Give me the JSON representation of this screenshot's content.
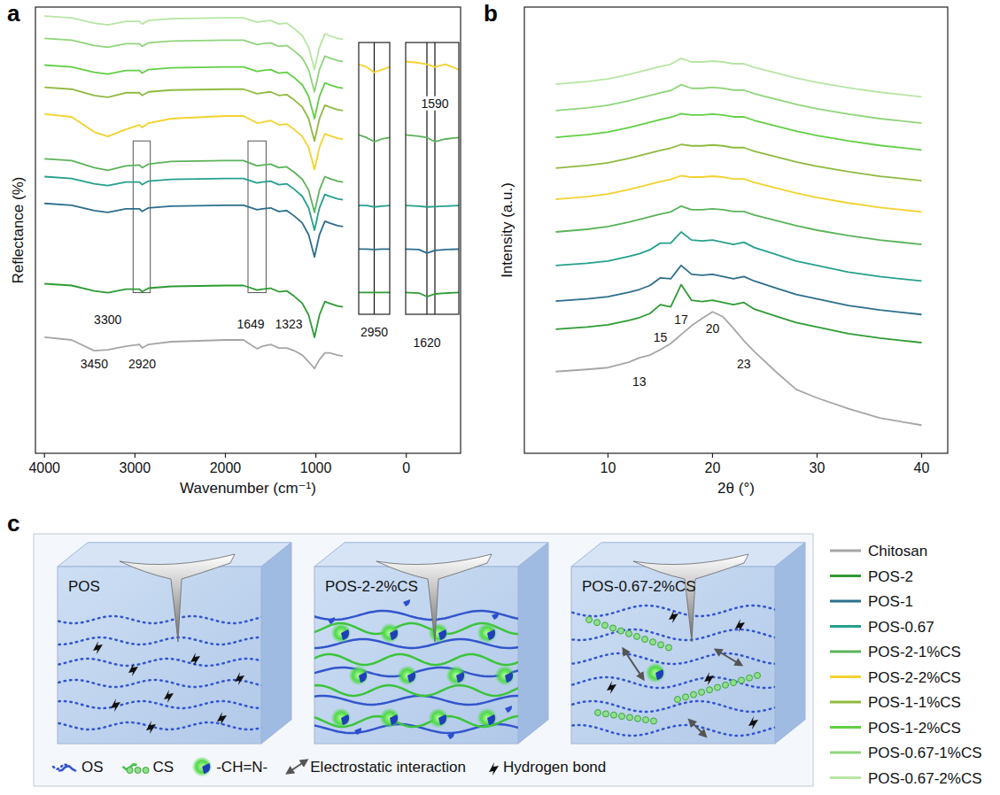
{
  "panel_labels": [
    "a",
    "b",
    "c"
  ],
  "chart_data": [
    {
      "type": "line",
      "xlabel": "Wavenumber (cm⁻¹)",
      "ylabel": "Reflectance (%)",
      "xlim": [
        4100,
        -600
      ],
      "ylim": [
        0,
        100
      ],
      "xticks": [
        4000,
        3000,
        2000,
        1000,
        0
      ],
      "tick_labels": "x",
      "legend": "right",
      "x": [
        4000,
        3700,
        3450,
        3300,
        3100,
        2950,
        2920,
        2850,
        2600,
        2000,
        1800,
        1649,
        1590,
        1500,
        1410,
        1323,
        1240,
        1150,
        1080,
        1015,
        960,
        900,
        850,
        760,
        700
      ],
      "series": [
        {
          "name": "Chitosan",
          "color": "#a6a6a6",
          "values": [
            26,
            25.4,
            23,
            23.2,
            24,
            24.4,
            23.6,
            24.4,
            25,
            25.4,
            25.4,
            23.4,
            24,
            24.4,
            23.6,
            23.6,
            23,
            22,
            20.5,
            19,
            21,
            22.5,
            22.5,
            22,
            21.8
          ]
        },
        {
          "name": "POS-2",
          "color": "#2e9b34",
          "values": [
            38,
            37.6,
            36.4,
            36,
            36.8,
            36.8,
            36.2,
            37,
            37.4,
            37.6,
            37.6,
            36.6,
            36.8,
            37,
            36.2,
            36.4,
            35.2,
            33.6,
            31,
            26,
            31,
            34,
            33.6,
            33,
            32.8
          ]
        },
        {
          "name": "POS-1",
          "color": "#2c6e8c",
          "values": [
            56,
            55.6,
            54.4,
            54,
            54.8,
            54.8,
            54.2,
            55,
            55.4,
            55.6,
            55.6,
            54.6,
            54.8,
            55,
            54.2,
            54.4,
            53.2,
            51.6,
            49,
            44,
            49,
            52,
            51.6,
            51,
            50.8
          ]
        },
        {
          "name": "POS-0.67",
          "color": "#26a08e",
          "values": [
            62,
            61.6,
            60.4,
            60,
            60.8,
            60.8,
            60.2,
            61,
            61.4,
            61.6,
            61.6,
            60.6,
            60.8,
            61,
            60.2,
            60.4,
            59.2,
            57.6,
            55,
            50,
            55,
            58,
            57.6,
            57,
            56.8
          ]
        },
        {
          "name": "POS-2-1%CS",
          "color": "#5bb35a",
          "values": [
            66,
            65.6,
            64,
            63.4,
            64.4,
            64.6,
            64,
            64.8,
            65.4,
            65.6,
            65.6,
            64.4,
            64.6,
            64.8,
            64,
            64.2,
            63,
            61.4,
            59,
            54,
            59,
            62,
            61.6,
            61,
            60.8
          ]
        },
        {
          "name": "POS-2-2%CS",
          "color": "#f4d22e",
          "values": [
            76,
            75.4,
            72,
            71,
            72.6,
            73.6,
            73,
            74,
            75,
            75.6,
            75.6,
            74,
            74.2,
            74.6,
            73.6,
            73.8,
            72.6,
            71,
            68.6,
            63.6,
            68.6,
            71.6,
            71.2,
            70.6,
            70.4
          ]
        },
        {
          "name": "POS-1-1%CS",
          "color": "#8fba3f",
          "values": [
            82,
            81.6,
            80.2,
            79.8,
            80.8,
            80.8,
            80.2,
            81,
            81.4,
            81.6,
            81.6,
            80.6,
            80.8,
            81,
            80.2,
            80.4,
            79.2,
            77.6,
            75,
            70,
            75,
            78,
            77.6,
            77,
            76.8
          ]
        },
        {
          "name": "POS-1-2%CS",
          "color": "#62cf45",
          "values": [
            87,
            86.6,
            85.4,
            85,
            85.8,
            85.8,
            85.2,
            86,
            86.4,
            86.6,
            86.6,
            85.6,
            85.8,
            86,
            85.2,
            85.4,
            84.2,
            82.6,
            80,
            75,
            80,
            83,
            82.6,
            82,
            81.8
          ]
        },
        {
          "name": "POS-0.67-1%CS",
          "color": "#8fd57b",
          "values": [
            93,
            92.6,
            91.4,
            91,
            91.8,
            91.8,
            91.2,
            92,
            92.4,
            92.6,
            92.6,
            91.6,
            91.8,
            92,
            91.2,
            91.4,
            90.2,
            88.6,
            86,
            81,
            86,
            89,
            88.6,
            88,
            87.8
          ]
        },
        {
          "name": "POS-0.67-2%CS",
          "color": "#b6e6a3",
          "values": [
            98,
            97.6,
            96.4,
            96,
            96.8,
            96.8,
            96.2,
            97,
            97.4,
            97.6,
            97.6,
            96.6,
            96.8,
            97,
            96.2,
            96.4,
            95.2,
            93.6,
            91,
            86,
            91,
            94,
            93.6,
            93,
            92.8
          ]
        }
      ],
      "regions": [
        {
          "x": [
            3020,
            2830
          ],
          "y": [
            36,
            70
          ]
        },
        {
          "x": [
            1750,
            1550
          ],
          "y": [
            36,
            70
          ]
        }
      ],
      "annotations": [
        {
          "text": "3450",
          "x": 3450,
          "y": 19
        },
        {
          "text": "3300",
          "x": 3300,
          "y": 29
        },
        {
          "text": "2920",
          "x": 2920,
          "y": 19
        },
        {
          "text": "1649",
          "x": 1720,
          "y": 28
        },
        {
          "text": "1323",
          "x": 1300,
          "y": 28
        }
      ]
    },
    {
      "type": "line",
      "xlabel": "2θ (°)",
      "ylabel": "Intensity (a.u.)",
      "xlim": [
        2,
        42.5
      ],
      "ylim": [
        0,
        100
      ],
      "xticks": [
        10,
        20,
        30,
        40
      ],
      "tick_labels": "x",
      "x": [
        5,
        8,
        10,
        12,
        13,
        14,
        15,
        16,
        17,
        18,
        19,
        20,
        21,
        22,
        23,
        24,
        26,
        28,
        30,
        33,
        36,
        40
      ],
      "series": [
        {
          "color": "#a6a6a6",
          "values": [
            18.3,
            18.8,
            19.2,
            20.4,
            21.4,
            22,
            23.2,
            24.6,
            26.6,
            28.6,
            30.2,
            31.7,
            30.6,
            28,
            25.2,
            22.8,
            18.4,
            14.3,
            12.4,
            10,
            7.9,
            6.3
          ]
        },
        {
          "color": "#2e9b34",
          "values": [
            27.8,
            28.3,
            28.8,
            29.8,
            30.4,
            31.3,
            33.3,
            32.8,
            37.8,
            34.3,
            34,
            34.3,
            33.8,
            33.3,
            33.8,
            32.3,
            30.8,
            29.3,
            28.3,
            26.8,
            25.8,
            24.8
          ]
        },
        {
          "color": "#2c6e8c",
          "values": [
            34.1,
            34.6,
            35.1,
            36.1,
            36.7,
            37.6,
            39.3,
            39.1,
            42.1,
            40.1,
            39.9,
            40.1,
            39.6,
            39.1,
            39.6,
            38.6,
            37.1,
            35.6,
            34.6,
            33.1,
            32.1,
            31.1
          ]
        },
        {
          "color": "#26a08e",
          "values": [
            42.1,
            42.6,
            43.1,
            44.1,
            44.7,
            45.6,
            47.1,
            47.1,
            49.6,
            47.8,
            47.6,
            47.8,
            47.3,
            46.8,
            47.3,
            46.1,
            44.6,
            43.1,
            42.1,
            40.6,
            39.6,
            38.6
          ]
        },
        {
          "color": "#5bb35a",
          "values": [
            49.6,
            50.2,
            50.8,
            51.8,
            52.4,
            53,
            53.6,
            54.1,
            55.4,
            54.6,
            54.6,
            54.8,
            54.6,
            54.2,
            54.2,
            53.4,
            52.2,
            51,
            50,
            48.8,
            47.8,
            46.8
          ]
        },
        {
          "color": "#f4d22e",
          "values": [
            56.9,
            57.5,
            58.1,
            59.1,
            59.7,
            60.3,
            60.9,
            61.4,
            62.2,
            61.9,
            61.9,
            62.1,
            61.9,
            61.5,
            61.5,
            60.7,
            59.5,
            58.3,
            57.3,
            56.1,
            55.1,
            54.1
          ]
        },
        {
          "color": "#8fba3f",
          "values": [
            63.9,
            64.5,
            65.1,
            66.1,
            66.7,
            67.3,
            67.9,
            68.4,
            69.2,
            68.9,
            68.9,
            69.1,
            68.9,
            68.5,
            68.5,
            67.7,
            66.5,
            65.3,
            64.3,
            63.1,
            62.1,
            61.1
          ]
        },
        {
          "color": "#62cf45",
          "values": [
            70.8,
            71.4,
            72,
            73,
            73.6,
            74.2,
            74.8,
            75.3,
            76.1,
            75.8,
            75.8,
            76,
            75.8,
            75.4,
            75.4,
            74.6,
            73.4,
            72.2,
            71.2,
            70,
            69,
            68
          ]
        },
        {
          "color": "#8fd57b",
          "values": [
            76.8,
            77.4,
            78,
            79,
            79.6,
            80.2,
            80.8,
            81.3,
            82.6,
            81.8,
            81.8,
            82,
            81.8,
            81.4,
            81.4,
            80.6,
            79.4,
            78.2,
            77.2,
            76,
            75,
            74
          ]
        },
        {
          "color": "#b6e6a3",
          "values": [
            82.7,
            83.3,
            83.9,
            84.9,
            85.5,
            86.1,
            86.7,
            87.2,
            88.5,
            87.7,
            87.7,
            87.9,
            87.7,
            87.3,
            87.3,
            86.5,
            85.3,
            84.1,
            83.1,
            81.9,
            80.9,
            79.9
          ]
        }
      ],
      "annotations": [
        {
          "text": "13",
          "x": 13,
          "y": 15
        },
        {
          "text": "15",
          "x": 15,
          "y": 25
        },
        {
          "text": "17",
          "x": 17,
          "y": 29
        },
        {
          "text": "20",
          "x": 20,
          "y": 27
        },
        {
          "text": "23",
          "x": 23,
          "y": 19
        }
      ]
    },
    {
      "type": "line",
      "xlim": [
        3000,
        2900
      ],
      "ylim": [
        0,
        100
      ],
      "tick_labels": false,
      "x": [
        3000,
        2975,
        2950,
        2925,
        2900
      ],
      "vlines": [
        2950
      ],
      "series": [
        {
          "color": "#f4d22e",
          "values": [
            92,
            91,
            89,
            90,
            91
          ]
        },
        {
          "color": "#5bb35a",
          "values": [
            66,
            65,
            63.5,
            64.5,
            65
          ]
        },
        {
          "color": "#26a08e",
          "values": [
            40,
            40,
            39.5,
            39.8,
            40
          ]
        },
        {
          "color": "#2c6e8c",
          "values": [
            24,
            24,
            23.8,
            24,
            24
          ]
        },
        {
          "color": "#2e9b34",
          "values": [
            8,
            8,
            8,
            8,
            8
          ]
        }
      ],
      "annotations": [
        {
          "text": "2950",
          "x": 2950,
          "y": -8
        }
      ]
    },
    {
      "type": "line",
      "xlim": [
        1700,
        1500
      ],
      "ylim": [
        0,
        100
      ],
      "tick_labels": false,
      "x": [
        1700,
        1650,
        1620,
        1590,
        1550,
        1500
      ],
      "vlines": [
        1620,
        1590
      ],
      "series": [
        {
          "color": "#f4d22e",
          "values": [
            93,
            92.5,
            92,
            91,
            92,
            90
          ]
        },
        {
          "color": "#5bb35a",
          "values": [
            66,
            65.5,
            65,
            63.5,
            64.5,
            65
          ]
        },
        {
          "color": "#26a08e",
          "values": [
            40,
            39.8,
            39.5,
            39.6,
            39.8,
            40
          ]
        },
        {
          "color": "#2c6e8c",
          "values": [
            24,
            23.8,
            22.5,
            23.5,
            23.8,
            24
          ]
        },
        {
          "color": "#2e9b34",
          "values": [
            8,
            7.8,
            6.5,
            7.5,
            7.8,
            8
          ]
        }
      ],
      "annotations": [
        {
          "text": "1590",
          "x": 1590,
          "y": 76
        },
        {
          "text": "1620",
          "x": 1620,
          "y": -12
        }
      ]
    }
  ],
  "diagram": {
    "panels": [
      {
        "title": "POS"
      },
      {
        "title": "POS-2-2%CS"
      },
      {
        "title": "POS-0.67-2%CS"
      }
    ],
    "legend": [
      {
        "label": "OS"
      },
      {
        "label": "CS"
      },
      {
        "label": "-CH=N-"
      },
      {
        "label": "Electrostatic interaction"
      },
      {
        "label": "Hydrogen bond"
      }
    ]
  }
}
